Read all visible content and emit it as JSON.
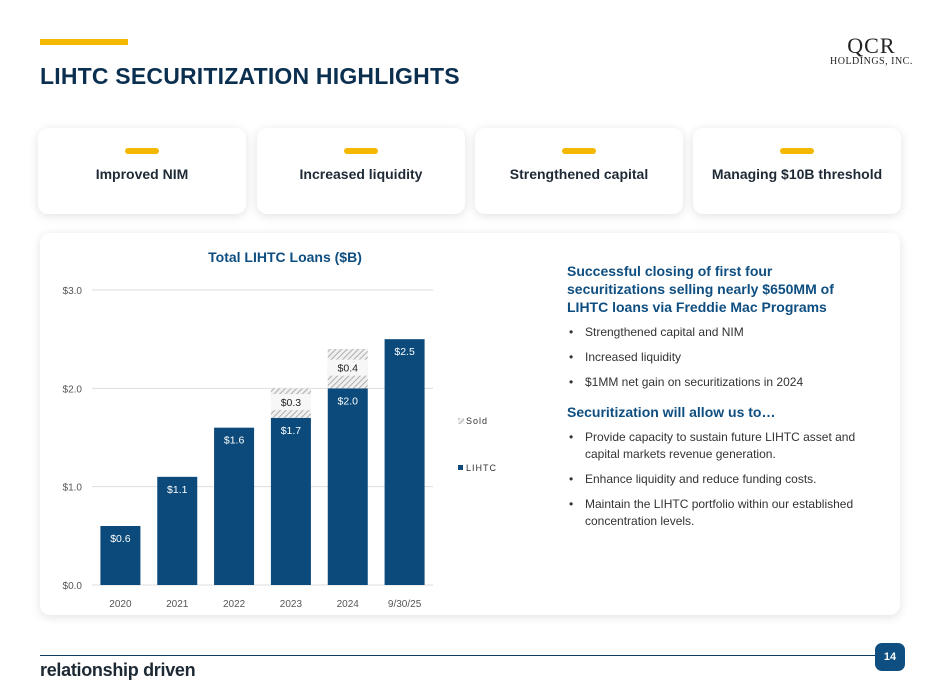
{
  "header": {
    "title": "LIHTC SECURITIZATION HIGHLIGHTS",
    "logo_main": "QCR",
    "logo_sub": "HOLDINGS, INC."
  },
  "cards": [
    {
      "label": "Improved NIM"
    },
    {
      "label": "Increased liquidity"
    },
    {
      "label": "Strengthened capital"
    },
    {
      "label": "Managing $10B threshold"
    }
  ],
  "right": {
    "heading1": "Successful closing of first four securitizations selling nearly $650MM of LIHTC loans via Freddie Mac Programs",
    "list1": [
      "Strengthened capital and NIM",
      "Increased liquidity",
      "$1MM net gain on securitizations in 2024"
    ],
    "heading2": "Securitization will allow us to…",
    "list2": [
      "Provide capacity to sustain future LIHTC asset and capital markets revenue generation.",
      "Enhance liquidity and reduce funding costs.",
      "Maintain the LIHTC portfolio within our established concentration levels."
    ]
  },
  "footer": {
    "tagline": "relationship driven",
    "page": "14"
  },
  "colors": {
    "navy": "#0b4a7a",
    "accent": "#f5b800"
  },
  "chart_data": {
    "type": "bar",
    "stacked": true,
    "title": "Total LIHTC Loans ($B)",
    "categories": [
      "2020",
      "2021",
      "2022",
      "2023",
      "2024",
      "9/30/25"
    ],
    "series": [
      {
        "name": "LIHTC",
        "values": [
          0.6,
          1.1,
          1.6,
          1.7,
          2.0,
          2.5
        ],
        "labels": [
          "$0.6",
          "$1.1",
          "$1.6",
          "$1.7",
          "$2.0",
          "$2.5"
        ]
      },
      {
        "name": "Sold",
        "values": [
          0,
          0,
          0,
          0.3,
          0.4,
          0
        ],
        "labels": [
          "",
          "",
          "",
          "$0.3",
          "$0.4",
          ""
        ]
      }
    ],
    "yticks": [
      "$0.0",
      "$1.0",
      "$2.0",
      "$3.0"
    ],
    "ylim": [
      0,
      3
    ],
    "grid": true,
    "legend": "right"
  }
}
